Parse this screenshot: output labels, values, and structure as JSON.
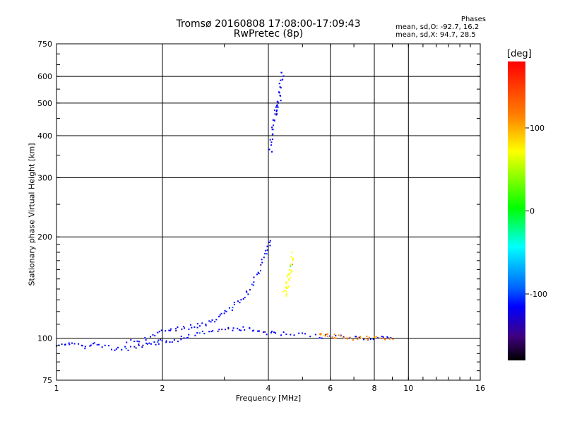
{
  "chart_data": {
    "type": "scatter",
    "title": "Tromsø 20160808 17:08:00-17:09:43",
    "subtitle": "RwPretec (8p)",
    "xlabel": "Frequency [MHz]",
    "ylabel": "Stationary phase Virtual Height [km]",
    "x_scale": "log",
    "y_scale": "log",
    "xlim": [
      1,
      16
    ],
    "ylim": [
      75,
      750
    ],
    "x_ticks": [
      1,
      2,
      4,
      6,
      8,
      10,
      16
    ],
    "y_ticks": [
      75,
      100,
      200,
      300,
      400,
      500,
      600,
      750
    ],
    "grid": true,
    "phase_stats": {
      "heading": "Phases",
      "o_line": "mean, sd,O: -92.7, 16.2",
      "x_line": "mean, sd,X: 94.7, 28.5"
    },
    "colorbar": {
      "label": "[deg]",
      "ticks": [
        100,
        0,
        -100
      ],
      "range": [
        -180,
        180
      ],
      "colors": [
        "#000000",
        "#400080",
        "#0000ff",
        "#0060ff",
        "#00ffff",
        "#00ff00",
        "#ffff00",
        "#ff8000",
        "#ff0000"
      ]
    },
    "traces": [
      {
        "name": "",
        "phase": -95,
        "x": [
          1.0,
          1.1,
          1.2,
          1.3,
          1.45,
          1.6,
          1.75,
          1.9,
          2.0,
          2.2,
          2.4,
          2.7,
          3.0,
          3.3,
          3.6,
          3.9,
          4.3,
          5.0,
          5.8,
          7.0,
          8.0,
          9.0
        ],
        "y": [
          95,
          97,
          94,
          96,
          93,
          93,
          95,
          96,
          98,
          99,
          102,
          104,
          106,
          107,
          106,
          104,
          103,
          102,
          101,
          100,
          100,
          100
        ]
      },
      {
        "name": "",
        "phase": -95,
        "x": [
          1.6,
          1.8,
          2.0,
          2.2,
          2.4,
          2.6,
          2.8,
          3.0,
          3.2,
          3.4,
          3.6,
          3.8,
          3.95,
          4.05
        ],
        "y": [
          97,
          100,
          104,
          106,
          108,
          110,
          113,
          118,
          125,
          133,
          145,
          160,
          180,
          195
        ]
      },
      {
        "name": "",
        "phase": -100,
        "x": [
          4.05,
          4.1,
          4.15,
          4.2,
          4.25,
          4.3,
          4.35,
          4.4
        ],
        "y": [
          360,
          400,
          440,
          470,
          490,
          520,
          570,
          620
        ]
      },
      {
        "name": "",
        "phase": 95,
        "x": [
          4.45,
          4.5,
          4.55,
          4.6,
          4.65,
          4.7
        ],
        "y": [
          135,
          140,
          148,
          155,
          165,
          178
        ]
      },
      {
        "name": "",
        "phase": 130,
        "x": [
          5.6,
          5.9,
          6.3,
          7.0,
          7.6,
          8.3,
          9.0
        ],
        "y": [
          103,
          102,
          101,
          100,
          100,
          100,
          100
        ]
      }
    ]
  }
}
